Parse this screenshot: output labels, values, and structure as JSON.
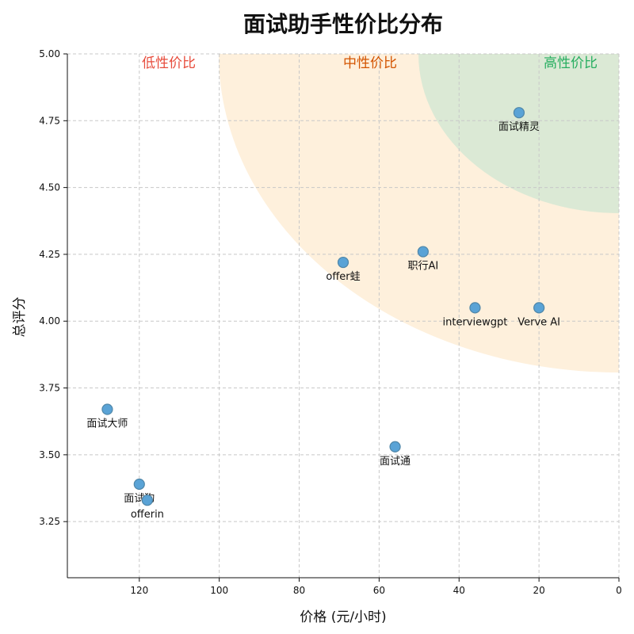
{
  "chart_data": {
    "type": "scatter",
    "title": "面试助手性价比分布",
    "xlabel": "价格 (元/小时)",
    "ylabel": "总评分",
    "x_inverted": true,
    "xlim": [
      138,
      0
    ],
    "ylim": [
      3.04,
      5.0
    ],
    "x_ticks": [
      120,
      100,
      80,
      60,
      40,
      20,
      0
    ],
    "y_ticks": [
      3.25,
      3.5,
      3.75,
      4.0,
      4.25,
      4.5,
      4.75,
      5.0
    ],
    "grid": true,
    "points": [
      {
        "name": "面试精灵",
        "x": 25,
        "y": 4.78
      },
      {
        "name": "职行AI",
        "x": 49,
        "y": 4.26
      },
      {
        "name": "offer蛙",
        "x": 69,
        "y": 4.22
      },
      {
        "name": "interviewgpt",
        "x": 36,
        "y": 4.05
      },
      {
        "name": "Verve AI",
        "x": 20,
        "y": 4.05
      },
      {
        "name": "面试大师",
        "x": 128,
        "y": 3.67
      },
      {
        "name": "面试通",
        "x": 56,
        "y": 3.53
      },
      {
        "name": "面试狗",
        "x": 120,
        "y": 3.39
      },
      {
        "name": "offerin",
        "x": 118,
        "y": 3.33
      }
    ],
    "zones": [
      {
        "label": "低性价比",
        "color": "#e74c3c"
      },
      {
        "label": "中性价比",
        "color": "#d35400",
        "fill": "#fdebd0"
      },
      {
        "label": "高性价比",
        "color": "#27ae60",
        "fill": "#d5e8d4"
      }
    ],
    "x_tick_labels": [
      "120",
      "100",
      "80",
      "60",
      "40",
      "20",
      "0"
    ],
    "y_tick_labels": [
      "3.25",
      "3.50",
      "3.75",
      "4.00",
      "4.25",
      "4.50",
      "4.75",
      "5.00"
    ]
  }
}
